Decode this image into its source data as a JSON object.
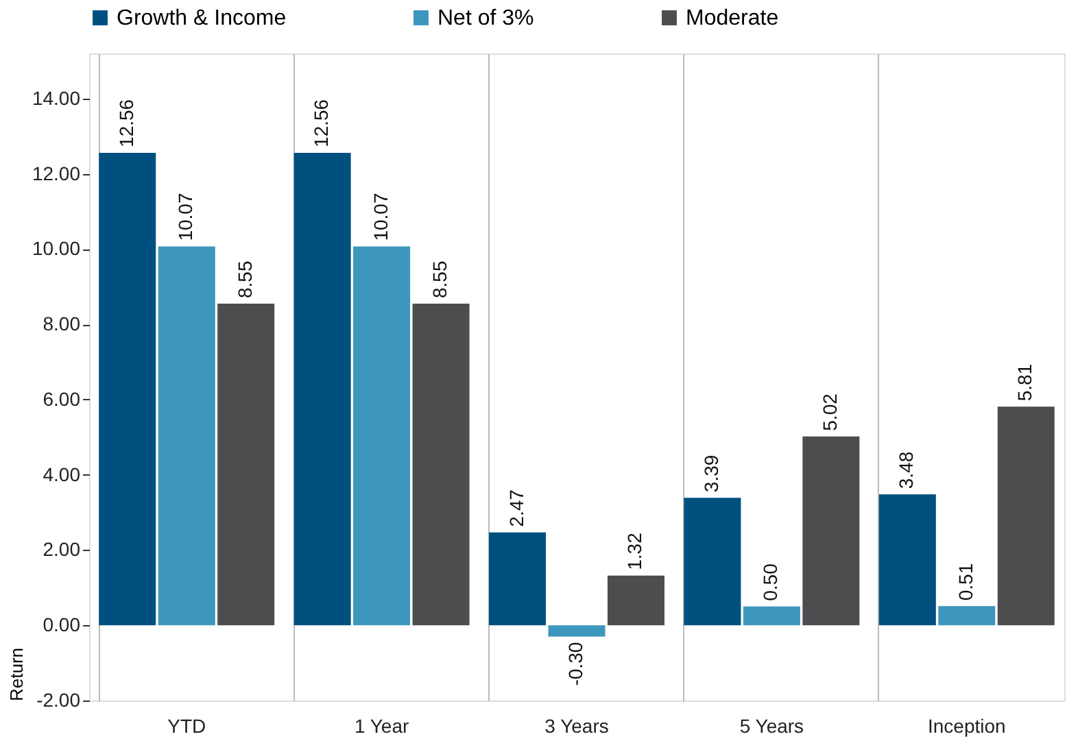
{
  "chart_data": {
    "type": "bar",
    "ylabel": "Return",
    "categories": [
      "YTD",
      "1 Year",
      "3 Years",
      "5 Years",
      "Inception"
    ],
    "series": [
      {
        "name": "Growth & Income",
        "color": "#00507f",
        "values": [
          12.56,
          12.56,
          2.47,
          3.39,
          3.48
        ]
      },
      {
        "name": "Net of 3%",
        "color": "#3d97bc",
        "values": [
          10.07,
          10.07,
          -0.3,
          0.5,
          0.51
        ]
      },
      {
        "name": "Moderate",
        "color": "#4d4d4f",
        "values": [
          8.55,
          8.55,
          1.32,
          5.02,
          5.81
        ]
      }
    ],
    "ylim": [
      -2,
      15.2
    ],
    "yticks": [
      {
        "value": -2,
        "label": "-2.00"
      },
      {
        "value": 0,
        "label": "0.00"
      },
      {
        "value": 2,
        "label": "2.00"
      },
      {
        "value": 4,
        "label": "4.00"
      },
      {
        "value": 6,
        "label": "6.00"
      },
      {
        "value": 8,
        "label": "8.00"
      },
      {
        "value": 10,
        "label": "10.00"
      },
      {
        "value": 12,
        "label": "12.00"
      },
      {
        "value": 14,
        "label": "14.00"
      }
    ],
    "value_labels": [
      [
        "12.56",
        "12.56",
        "2.47",
        "3.39",
        "3.48"
      ],
      [
        "10.07",
        "10.07",
        "-0.30",
        "0.50",
        "0.51"
      ],
      [
        "8.55",
        "8.55",
        "1.32",
        "5.02",
        "5.81"
      ]
    ],
    "grid": "x",
    "legend": "top"
  }
}
